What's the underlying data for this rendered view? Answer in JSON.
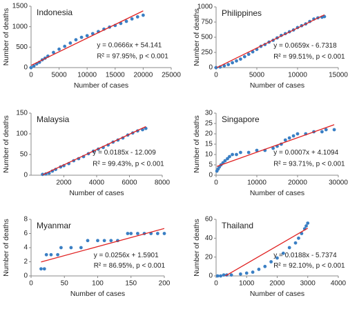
{
  "chart_data": [
    {
      "type": "scatter",
      "title": "Indonesia",
      "x_label": "Number of cases",
      "y_label": "Number of deaths",
      "color": "#3a7fc4",
      "trend_color": "#e02020",
      "x": [
        0,
        500,
        1000,
        1500,
        2000,
        2500,
        3000,
        4000,
        5000,
        6000,
        7000,
        8000,
        9000,
        10000,
        11000,
        12000,
        13000,
        14000,
        15000,
        16000,
        17000,
        18000,
        19000,
        20000
      ],
      "values": [
        0,
        40,
        90,
        130,
        190,
        230,
        280,
        370,
        450,
        520,
        600,
        680,
        740,
        780,
        830,
        880,
        940,
        990,
        1030,
        1080,
        1130,
        1190,
        1240,
        1280
      ],
      "xlim": [
        0,
        25000
      ],
      "xticks": [
        0,
        5000,
        10000,
        15000,
        20000,
        25000
      ],
      "ylim": [
        0,
        1500
      ],
      "yticks": [
        0,
        500,
        1000,
        1500
      ],
      "trend": {
        "slope": 0.0666,
        "intercept": 54.141
      },
      "equation": "y = 0.0666x + 54.141",
      "fit_stats": "R² = 97.95%, p < 0.001"
    },
    {
      "type": "scatter",
      "title": "Philippines",
      "x_label": "Number of cases",
      "y_label": "Number of deaths",
      "color": "#3a7fc4",
      "trend_color": "#e02020",
      "x": [
        0,
        500,
        1000,
        1500,
        2000,
        2500,
        3000,
        3500,
        4000,
        4500,
        5000,
        5500,
        6000,
        6500,
        7000,
        7500,
        8000,
        8500,
        9000,
        9500,
        10000,
        10500,
        11000,
        11500,
        12000,
        12500,
        13000,
        13300
      ],
      "values": [
        0,
        10,
        30,
        50,
        80,
        110,
        140,
        180,
        220,
        260,
        300,
        350,
        380,
        420,
        450,
        490,
        530,
        560,
        590,
        620,
        660,
        690,
        720,
        760,
        800,
        820,
        830,
        840
      ],
      "xlim": [
        0,
        15000
      ],
      "xticks": [
        0,
        5000,
        10000,
        15000
      ],
      "ylim": [
        0,
        1000
      ],
      "yticks": [
        0,
        250,
        500,
        750,
        1000
      ],
      "trend": {
        "slope": 0.0659,
        "intercept": -6.7318
      },
      "equation": "y = 0.0659x - 6.7318",
      "fit_stats": "R² = 99.51%, p < 0.001"
    },
    {
      "type": "scatter",
      "title": "Malaysia",
      "x_label": "Number of cases",
      "y_label": "Number of deaths",
      "color": "#3a7fc4",
      "trend_color": "#e02020",
      "x": [
        700,
        900,
        1100,
        1300,
        1500,
        1800,
        2000,
        2300,
        2600,
        2900,
        3200,
        3500,
        3800,
        4100,
        4400,
        4700,
        5000,
        5300,
        5600,
        5900,
        6200,
        6500,
        6800,
        7000
      ],
      "values": [
        2,
        3,
        5,
        10,
        14,
        20,
        23,
        28,
        35,
        40,
        45,
        52,
        58,
        63,
        67,
        73,
        80,
        85,
        90,
        97,
        102,
        107,
        110,
        113
      ],
      "xlim": [
        0,
        8000
      ],
      "xticks": [
        2000,
        4000,
        6000,
        8000
      ],
      "ylim": [
        0,
        150
      ],
      "yticks": [
        0,
        50,
        100,
        150
      ],
      "trend": {
        "slope": 0.0185,
        "intercept": -12.009
      },
      "equation": "y = 0.0185x - 12.009",
      "fit_stats": "R² = 99.43%, p < 0.001"
    },
    {
      "type": "scatter",
      "title": "Singapore",
      "x_label": "Number of cases",
      "y_label": "Number of deaths",
      "color": "#3a7fc4",
      "trend_color": "#e02020",
      "x": [
        200,
        500,
        800,
        1200,
        1700,
        2200,
        2800,
        3300,
        4000,
        5000,
        6000,
        8000,
        10000,
        12000,
        14000,
        15000,
        16000,
        17000,
        18000,
        19000,
        20000,
        22000,
        24000,
        26000,
        27000,
        29000
      ],
      "values": [
        2,
        3,
        4,
        5,
        6,
        7,
        8,
        9,
        10,
        10,
        11,
        11,
        12,
        12,
        13,
        14,
        15,
        17,
        18,
        19,
        20,
        20,
        21,
        21,
        22,
        22
      ],
      "xlim": [
        0,
        30000
      ],
      "xticks": [
        0,
        10000,
        20000,
        30000
      ],
      "ylim": [
        0,
        30
      ],
      "yticks": [
        0,
        5,
        10,
        15,
        20,
        25,
        30
      ],
      "trend": {
        "slope": 0.0007,
        "intercept": 4.1094
      },
      "equation": "y = 0.0007x + 4.1094",
      "fit_stats": "R² = 93.71%, p < 0.001"
    },
    {
      "type": "scatter",
      "title": "Myanmar",
      "x_label": "Number of cases",
      "y_label": "Number of deaths",
      "color": "#3a7fc4",
      "trend_color": "#e02020",
      "x": [
        15,
        20,
        23,
        30,
        40,
        45,
        60,
        75,
        85,
        100,
        110,
        120,
        130,
        145,
        150,
        160,
        170,
        180,
        190,
        200
      ],
      "values": [
        1,
        1,
        3,
        3,
        3,
        4,
        4,
        4,
        5,
        5,
        5,
        5,
        5,
        6,
        6,
        6,
        6,
        6,
        6,
        6
      ],
      "xlim": [
        0,
        200
      ],
      "xticks": [
        0,
        50,
        100,
        150,
        200
      ],
      "ylim": [
        0,
        8
      ],
      "yticks": [
        0,
        2,
        4,
        6,
        8
      ],
      "trend": {
        "slope": 0.0256,
        "intercept": 1.5901
      },
      "equation": "y = 0.0256x + 1.5901",
      "fit_stats": "R² = 86.95%, p < 0.001"
    },
    {
      "type": "scatter",
      "title": "Thailand",
      "x_label": "Number of cases",
      "y_label": "Number of deaths",
      "color": "#3a7fc4",
      "trend_color": "#e02020",
      "x": [
        50,
        150,
        250,
        350,
        500,
        800,
        1000,
        1200,
        1400,
        1600,
        1800,
        2000,
        2200,
        2400,
        2600,
        2700,
        2800,
        2900,
        2950,
        3000
      ],
      "values": [
        0,
        0,
        1,
        1,
        1,
        2,
        3,
        4,
        7,
        10,
        15,
        19,
        24,
        30,
        35,
        40,
        45,
        50,
        53,
        56
      ],
      "xlim": [
        0,
        4000
      ],
      "xticks": [
        0,
        1000,
        2000,
        3000,
        4000
      ],
      "ylim": [
        0,
        60
      ],
      "yticks": [
        0,
        20,
        40,
        60
      ],
      "trend": {
        "slope": 0.0188,
        "intercept": -5.7374
      },
      "equation": "y = 0.0188x - 5.7374",
      "fit_stats": "R² = 92.10%, p < 0.001"
    }
  ]
}
